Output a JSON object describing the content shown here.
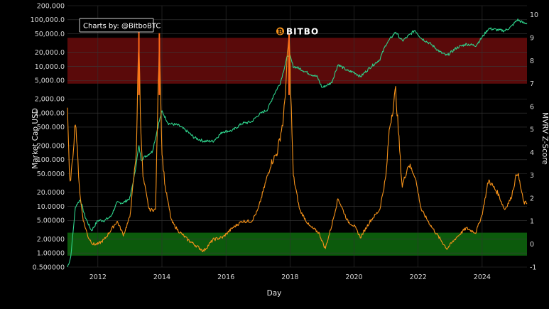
{
  "chart_data": {
    "type": "line",
    "title": "",
    "credit": "Charts by: @BitboBTC",
    "logo_text": "BITBO",
    "xlabel": "Day",
    "ylabel_left": "Market Cap USD",
    "ylabel_right": "MVRV Z-Score",
    "x_ticks": [
      "2012",
      "2014",
      "2016",
      "2018",
      "2020",
      "2022",
      "2024"
    ],
    "x_range": [
      2011.05,
      2025.4
    ],
    "y_left_scale": "log",
    "y_left_range": [
      0.5,
      200000
    ],
    "y_left_ticks": [
      {
        "value": 0.5,
        "label": "0.500000"
      },
      {
        "value": 1,
        "label": "1.00000"
      },
      {
        "value": 2,
        "label": "2.00000"
      },
      {
        "value": 5,
        "label": "5.00000"
      },
      {
        "value": 10,
        "label": "10.0000"
      },
      {
        "value": 20,
        "label": "20.0000"
      },
      {
        "value": 50,
        "label": "50.0000"
      },
      {
        "value": 100,
        "label": "100.000"
      },
      {
        "value": 200,
        "label": "200.000"
      },
      {
        "value": 500,
        "label": "500.000"
      },
      {
        "value": 1000,
        "label": "1,000.00"
      },
      {
        "value": 2000,
        "label": "2,000.00"
      },
      {
        "value": 5000,
        "label": "5,000.00"
      },
      {
        "value": 10000,
        "label": "10,000.0"
      },
      {
        "value": 20000,
        "label": "20,000.0"
      },
      {
        "value": 50000,
        "label": "50,000.0"
      },
      {
        "value": 100000,
        "label": "100,000.0"
      },
      {
        "value": 200000,
        "label": "200,000"
      }
    ],
    "y_right_range": [
      -1,
      10.4
    ],
    "y_right_ticks": [
      -1,
      0,
      1,
      2,
      3,
      4,
      5,
      6,
      7,
      8,
      9,
      10
    ],
    "bands": [
      {
        "zone": "overvalued",
        "z_from": 7,
        "z_to": 9,
        "color": "#5a0a0a"
      },
      {
        "zone": "undervalued",
        "z_from": -0.5,
        "z_to": 0.5,
        "color": "#0c5a0c"
      }
    ],
    "grid": true,
    "series": [
      {
        "axis": "left",
        "color": "#2fd38c",
        "x": [
          2011.05,
          2011.15,
          2011.3,
          2011.45,
          2011.6,
          2011.8,
          2012.0,
          2012.2,
          2012.4,
          2012.6,
          2012.8,
          2013.0,
          2013.15,
          2013.28,
          2013.35,
          2013.5,
          2013.7,
          2013.9,
          2014.0,
          2014.2,
          2014.5,
          2014.8,
          2015.0,
          2015.3,
          2015.6,
          2015.9,
          2016.2,
          2016.5,
          2016.8,
          2017.0,
          2017.3,
          2017.5,
          2017.7,
          2017.9,
          2017.97,
          2018.1,
          2018.3,
          2018.6,
          2018.85,
          2019.0,
          2019.3,
          2019.5,
          2019.8,
          2020.0,
          2020.2,
          2020.5,
          2020.8,
          2021.0,
          2021.3,
          2021.5,
          2021.7,
          2021.9,
          2022.1,
          2022.4,
          2022.7,
          2022.9,
          2023.2,
          2023.5,
          2023.8,
          2024.0,
          2024.2,
          2024.5,
          2024.7,
          2024.9,
          2025.1,
          2025.3
        ],
        "y": [
          0.5,
          0.8,
          10,
          14,
          6,
          3,
          5,
          5,
          6,
          12,
          12,
          15,
          50,
          200,
          100,
          120,
          150,
          600,
          1100,
          600,
          550,
          400,
          300,
          250,
          250,
          400,
          420,
          600,
          650,
          900,
          1200,
          2500,
          4500,
          15000,
          19000,
          10000,
          9000,
          7000,
          6000,
          3500,
          4500,
          11000,
          8000,
          7500,
          6000,
          9500,
          14000,
          30000,
          55000,
          35000,
          45000,
          60000,
          40000,
          30000,
          20000,
          17000,
          25000,
          30000,
          28000,
          42000,
          65000,
          60000,
          58000,
          70000,
          100000,
          85000
        ]
      },
      {
        "axis": "right",
        "color": "#f7931a",
        "x": [
          2011.05,
          2011.12,
          2011.2,
          2011.3,
          2011.4,
          2011.45,
          2011.55,
          2011.7,
          2011.85,
          2012.0,
          2012.2,
          2012.4,
          2012.6,
          2012.8,
          2013.0,
          2013.2,
          2013.28,
          2013.32,
          2013.4,
          2013.6,
          2013.8,
          2013.92,
          2014.0,
          2014.1,
          2014.3,
          2014.5,
          2014.8,
          2015.0,
          2015.3,
          2015.6,
          2015.9,
          2016.2,
          2016.5,
          2016.8,
          2017.0,
          2017.2,
          2017.4,
          2017.6,
          2017.8,
          2017.97,
          2018.1,
          2018.3,
          2018.6,
          2018.9,
          2019.1,
          2019.3,
          2019.5,
          2019.8,
          2020.0,
          2020.2,
          2020.5,
          2020.8,
          2021.0,
          2021.1,
          2021.3,
          2021.5,
          2021.7,
          2021.9,
          2022.1,
          2022.4,
          2022.7,
          2022.9,
          2023.2,
          2023.5,
          2023.8,
          2024.0,
          2024.2,
          2024.5,
          2024.7,
          2024.9,
          2025.1,
          2025.3
        ],
        "y": [
          6,
          2.5,
          3.5,
          5.5,
          3,
          2,
          1,
          0.3,
          0,
          0,
          0.2,
          0.6,
          1,
          0.4,
          1.2,
          4,
          9.3,
          6,
          3,
          1.5,
          1.5,
          9.2,
          4,
          2.5,
          1,
          0.6,
          0.2,
          0,
          -0.3,
          0.2,
          0.3,
          0.7,
          1,
          1,
          1.5,
          2.5,
          3.5,
          4,
          5.5,
          9.2,
          3,
          1.5,
          0.8,
          0.5,
          -0.2,
          0.8,
          2,
          1,
          0.8,
          0.3,
          1,
          1.5,
          3,
          5,
          6.7,
          2.5,
          3.5,
          3,
          1.5,
          0.8,
          0.2,
          -0.2,
          0.3,
          0.7,
          0.5,
          1.3,
          2.8,
          2.2,
          1.5,
          2,
          3.2,
          1.8
        ]
      }
    ]
  }
}
